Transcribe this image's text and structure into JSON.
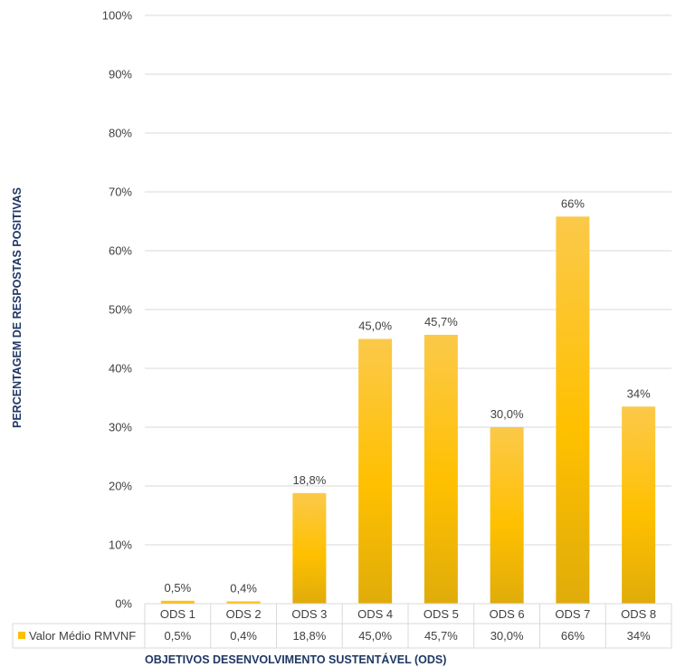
{
  "chart_data": {
    "type": "bar",
    "categories": [
      "ODS 1",
      "ODS 2",
      "ODS 3",
      "ODS 4",
      "ODS 5",
      "ODS 6",
      "ODS 7",
      "ODS 8"
    ],
    "series": [
      {
        "name": "Valor Médio RMVNF",
        "values": [
          0.5,
          0.4,
          18.8,
          45.0,
          45.7,
          30.0,
          65.8,
          33.5
        ],
        "labels": [
          "0,5%",
          "0,4%",
          "18,8%",
          "45,0%",
          "45,7%",
          "30,0%",
          "66%",
          "34%"
        ]
      }
    ],
    "xlabel": "OBJETIVOS DESENVOLVIMENTO SUSTENTÁVEL (ODS)",
    "ylabel": "PERCENTAGEM DE RESPOSTAS POSITIVAS",
    "ylim": [
      0,
      100
    ],
    "yticks": [
      "0%",
      "10%",
      "20%",
      "30%",
      "40%",
      "50%",
      "60%",
      "70%",
      "80%",
      "90%",
      "100%"
    ],
    "grid": true,
    "legend": "data-table",
    "colors": {
      "bar_top": "#fbc94a",
      "bar_mid": "#ffc000",
      "bar_bottom": "#e0ac0a",
      "grid": "#d9d9d9",
      "axis_title": "#1f3864"
    }
  }
}
